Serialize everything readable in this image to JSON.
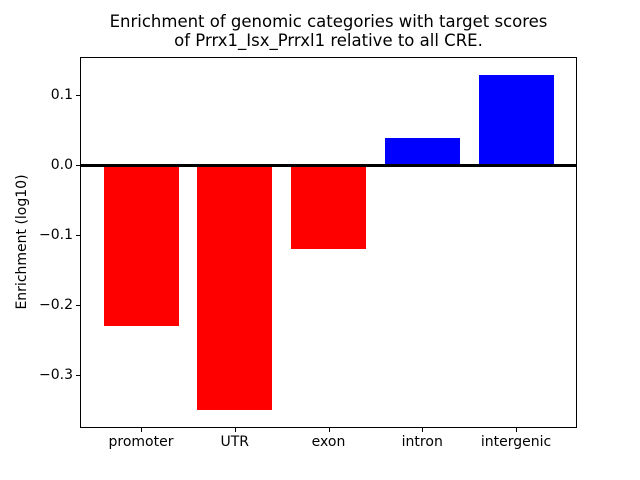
{
  "figure": {
    "title_line1": "Enrichment of genomic categories with target scores",
    "title_line2": "of Prrx1_Isx_Prrxl1 relative to all CRE.",
    "ylabel": "Enrichment (log10)"
  },
  "chart_data": {
    "type": "bar",
    "title": "Enrichment of genomic categories with target scores of Prrx1_Isx_Prrxl1 relative to all CRE.",
    "xlabel": "",
    "ylabel": "Enrichment (log10)",
    "categories": [
      "promoter",
      "UTR",
      "exon",
      "intron",
      "intergenic"
    ],
    "values": [
      -0.23,
      -0.35,
      -0.12,
      0.04,
      0.13
    ],
    "negative_color": "#ff0000",
    "positive_color": "#0000ff",
    "ylim": [
      -0.374,
      0.154
    ],
    "yticks": [
      0.1,
      0.0,
      -0.1,
      -0.2,
      -0.3
    ],
    "ytick_labels": [
      "0.1",
      "0.0",
      "−0.1",
      "−0.2",
      "−0.3"
    ],
    "zero_line": true,
    "grid": false,
    "legend": null,
    "bar_width_fraction": 0.8
  }
}
